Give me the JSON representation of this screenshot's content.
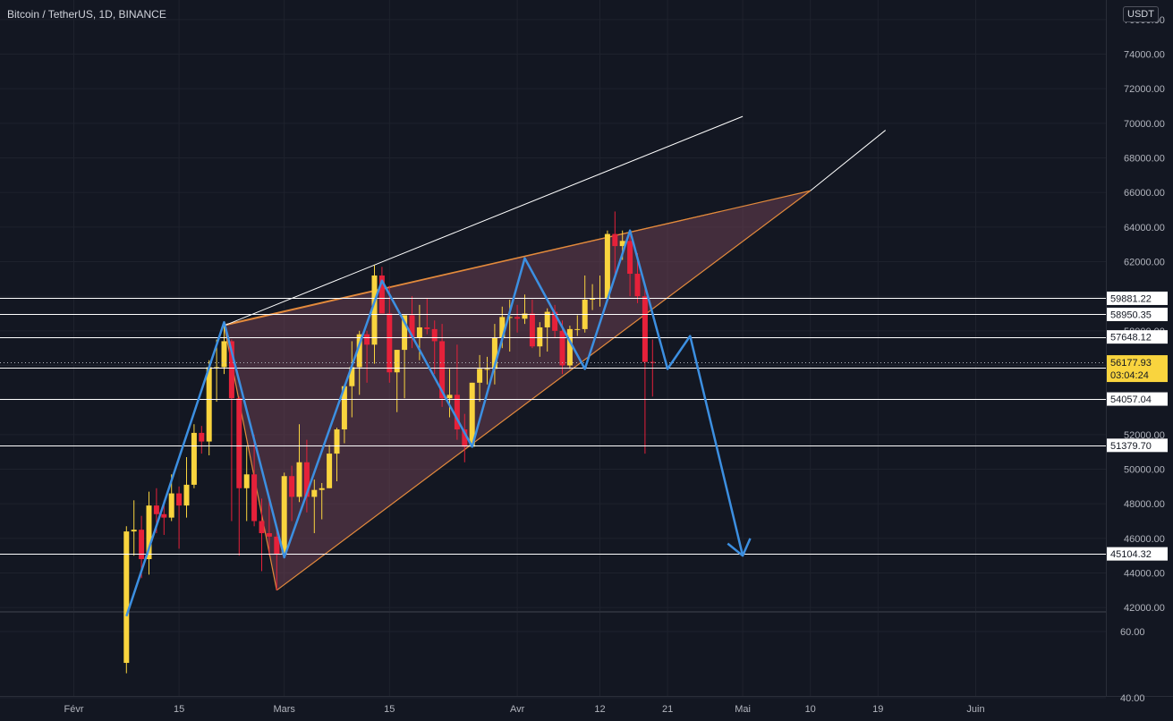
{
  "header": {
    "symbol_title": "Bitcoin / TetherUS, 1D, BINANCE",
    "unit": "USDT"
  },
  "chart_data": [
    {
      "type": "candlestick",
      "title": "Bitcoin / TetherUS, 1D, BINANCE",
      "ylabel": "USDT",
      "ylim": [
        41500,
        76000
      ],
      "grid": true,
      "colors": {
        "up": "#f9d43e",
        "down": "#e5213a",
        "up_wick": "#f9d43e",
        "down_wick": "#e5213a",
        "background": "#131722",
        "wedge_fill": "#6b3f52",
        "wedge_edge": "#e38a3c",
        "pattern": "#3c8fe1",
        "trendline": "#ffffff"
      },
      "x_ticks": [
        "Févr",
        "15",
        "Mars",
        "15",
        "Avr",
        "12",
        "21",
        "Mai",
        "10",
        "19",
        "Juin"
      ],
      "y_ticks": [
        "42000.00",
        "44000.00",
        "46000.00",
        "48000.00",
        "50000.00",
        "52000.00",
        "54000.00",
        "56000.00",
        "58000.00",
        "60000.00",
        "62000.00",
        "64000.00",
        "66000.00",
        "68000.00",
        "70000.00",
        "72000.00",
        "74000.00",
        "76000.00"
      ],
      "candles": [
        {
          "date": "2021-02-08",
          "o": 38800,
          "h": 46700,
          "l": 38200,
          "c": 46400
        },
        {
          "date": "2021-02-09",
          "o": 46400,
          "h": 48200,
          "l": 45000,
          "c": 46500
        },
        {
          "date": "2021-02-10",
          "o": 46500,
          "h": 47300,
          "l": 43700,
          "c": 44800
        },
        {
          "date": "2021-02-11",
          "o": 44800,
          "h": 48700,
          "l": 43900,
          "c": 47900
        },
        {
          "date": "2021-02-12",
          "o": 47900,
          "h": 48900,
          "l": 46300,
          "c": 47400
        },
        {
          "date": "2021-02-13",
          "o": 47400,
          "h": 48200,
          "l": 46200,
          "c": 47200
        },
        {
          "date": "2021-02-14",
          "o": 47200,
          "h": 49700,
          "l": 47000,
          "c": 48600
        },
        {
          "date": "2021-02-15",
          "o": 48600,
          "h": 49000,
          "l": 45400,
          "c": 47900
        },
        {
          "date": "2021-02-16",
          "o": 47900,
          "h": 50700,
          "l": 47200,
          "c": 49100
        },
        {
          "date": "2021-02-17",
          "o": 49100,
          "h": 52600,
          "l": 48900,
          "c": 52100
        },
        {
          "date": "2021-02-18",
          "o": 52100,
          "h": 52500,
          "l": 50900,
          "c": 51600
        },
        {
          "date": "2021-02-19",
          "o": 51600,
          "h": 56300,
          "l": 50800,
          "c": 55900
        },
        {
          "date": "2021-02-20",
          "o": 55900,
          "h": 57500,
          "l": 53900,
          "c": 55900
        },
        {
          "date": "2021-02-21",
          "o": 55900,
          "h": 58300,
          "l": 55500,
          "c": 57400
        },
        {
          "date": "2021-02-22",
          "o": 57400,
          "h": 57500,
          "l": 47000,
          "c": 54100
        },
        {
          "date": "2021-02-23",
          "o": 54100,
          "h": 54200,
          "l": 45000,
          "c": 48900
        },
        {
          "date": "2021-02-24",
          "o": 48900,
          "h": 51300,
          "l": 47000,
          "c": 49700
        },
        {
          "date": "2021-02-25",
          "o": 49700,
          "h": 52000,
          "l": 46700,
          "c": 47000
        },
        {
          "date": "2021-02-26",
          "o": 47000,
          "h": 48300,
          "l": 44100,
          "c": 46300
        },
        {
          "date": "2021-02-27",
          "o": 46300,
          "h": 48300,
          "l": 45000,
          "c": 46100
        },
        {
          "date": "2021-02-28",
          "o": 46100,
          "h": 46600,
          "l": 43000,
          "c": 45100
        },
        {
          "date": "2021-03-01",
          "o": 45100,
          "h": 49800,
          "l": 45000,
          "c": 49600
        },
        {
          "date": "2021-03-02",
          "o": 49600,
          "h": 50200,
          "l": 47000,
          "c": 48400
        },
        {
          "date": "2021-03-03",
          "o": 48400,
          "h": 52600,
          "l": 48100,
          "c": 50400
        },
        {
          "date": "2021-03-04",
          "o": 50400,
          "h": 51700,
          "l": 47500,
          "c": 48400
        },
        {
          "date": "2021-03-05",
          "o": 48400,
          "h": 49400,
          "l": 46300,
          "c": 48800
        },
        {
          "date": "2021-03-06",
          "o": 48800,
          "h": 49200,
          "l": 47100,
          "c": 48900
        },
        {
          "date": "2021-03-07",
          "o": 48900,
          "h": 51400,
          "l": 48900,
          "c": 50900
        },
        {
          "date": "2021-03-08",
          "o": 50900,
          "h": 52400,
          "l": 49300,
          "c": 52300
        },
        {
          "date": "2021-03-09",
          "o": 52300,
          "h": 54900,
          "l": 51500,
          "c": 54800
        },
        {
          "date": "2021-03-10",
          "o": 54800,
          "h": 57400,
          "l": 53000,
          "c": 55900
        },
        {
          "date": "2021-03-11",
          "o": 55900,
          "h": 58000,
          "l": 54300,
          "c": 57800
        },
        {
          "date": "2021-03-12",
          "o": 57800,
          "h": 58000,
          "l": 55000,
          "c": 57200
        },
        {
          "date": "2021-03-13",
          "o": 57200,
          "h": 61800,
          "l": 56100,
          "c": 61200
        },
        {
          "date": "2021-03-14",
          "o": 61200,
          "h": 61700,
          "l": 59000,
          "c": 59000
        },
        {
          "date": "2021-03-15",
          "o": 59000,
          "h": 60600,
          "l": 55000,
          "c": 55600
        },
        {
          "date": "2021-03-16",
          "o": 55600,
          "h": 56900,
          "l": 53300,
          "c": 56900
        },
        {
          "date": "2021-03-17",
          "o": 56900,
          "h": 58900,
          "l": 54100,
          "c": 58900
        },
        {
          "date": "2021-03-18",
          "o": 58900,
          "h": 60000,
          "l": 57000,
          "c": 57600
        },
        {
          "date": "2021-03-19",
          "o": 57600,
          "h": 59500,
          "l": 56300,
          "c": 58200
        },
        {
          "date": "2021-03-20",
          "o": 58200,
          "h": 59900,
          "l": 57800,
          "c": 58100
        },
        {
          "date": "2021-03-21",
          "o": 58100,
          "h": 58600,
          "l": 55500,
          "c": 57400
        },
        {
          "date": "2021-03-22",
          "o": 57400,
          "h": 58400,
          "l": 53600,
          "c": 54100
        },
        {
          "date": "2021-03-23",
          "o": 54100,
          "h": 55800,
          "l": 53000,
          "c": 54300
        },
        {
          "date": "2021-03-24",
          "o": 54300,
          "h": 57200,
          "l": 51700,
          "c": 52300
        },
        {
          "date": "2021-03-25",
          "o": 52300,
          "h": 53200,
          "l": 50400,
          "c": 51300
        },
        {
          "date": "2021-03-26",
          "o": 51300,
          "h": 55000,
          "l": 51300,
          "c": 55000
        },
        {
          "date": "2021-03-27",
          "o": 55000,
          "h": 56600,
          "l": 53900,
          "c": 55800
        },
        {
          "date": "2021-03-28",
          "o": 55800,
          "h": 56500,
          "l": 54900,
          "c": 55800
        },
        {
          "date": "2021-03-29",
          "o": 55800,
          "h": 58400,
          "l": 54900,
          "c": 57600
        },
        {
          "date": "2021-03-30",
          "o": 57600,
          "h": 59400,
          "l": 57000,
          "c": 58800
        },
        {
          "date": "2021-03-31",
          "o": 58800,
          "h": 59800,
          "l": 56800,
          "c": 58800
        },
        {
          "date": "2021-04-01",
          "o": 58800,
          "h": 59500,
          "l": 57900,
          "c": 58700
        },
        {
          "date": "2021-04-02",
          "o": 58700,
          "h": 60100,
          "l": 58400,
          "c": 59000
        },
        {
          "date": "2021-04-03",
          "o": 59000,
          "h": 59800,
          "l": 57000,
          "c": 57100
        },
        {
          "date": "2021-04-04",
          "o": 57100,
          "h": 58500,
          "l": 56500,
          "c": 58200
        },
        {
          "date": "2021-04-05",
          "o": 58200,
          "h": 59300,
          "l": 56800,
          "c": 59100
        },
        {
          "date": "2021-04-06",
          "o": 59100,
          "h": 59500,
          "l": 57600,
          "c": 58000
        },
        {
          "date": "2021-04-07",
          "o": 58000,
          "h": 58600,
          "l": 55500,
          "c": 56000
        },
        {
          "date": "2021-04-08",
          "o": 56000,
          "h": 58300,
          "l": 55800,
          "c": 58100
        },
        {
          "date": "2021-04-09",
          "o": 58100,
          "h": 58900,
          "l": 57700,
          "c": 58100
        },
        {
          "date": "2021-04-10",
          "o": 58100,
          "h": 61200,
          "l": 57900,
          "c": 59800
        },
        {
          "date": "2021-04-11",
          "o": 59800,
          "h": 60700,
          "l": 59200,
          "c": 59900
        },
        {
          "date": "2021-04-12",
          "o": 59900,
          "h": 61200,
          "l": 59400,
          "c": 59900
        },
        {
          "date": "2021-04-13",
          "o": 59900,
          "h": 63800,
          "l": 59900,
          "c": 63600
        },
        {
          "date": "2021-04-14",
          "o": 63600,
          "h": 64900,
          "l": 61000,
          "c": 62900
        },
        {
          "date": "2021-04-15",
          "o": 62900,
          "h": 63800,
          "l": 62100,
          "c": 63200
        },
        {
          "date": "2021-04-16",
          "o": 63200,
          "h": 63500,
          "l": 60000,
          "c": 61300
        },
        {
          "date": "2021-04-17",
          "o": 61300,
          "h": 62500,
          "l": 59600,
          "c": 60000
        },
        {
          "date": "2021-04-18",
          "o": 60000,
          "h": 60500,
          "l": 50900,
          "c": 56200
        },
        {
          "date": "2021-04-19",
          "o": 56200,
          "h": 57500,
          "l": 54200,
          "c": 56178
        }
      ],
      "wedge": {
        "upper": [
          {
            "date": "2021-02-21",
            "y": 58300
          },
          {
            "date": "2021-05-10",
            "y": 66100
          }
        ],
        "lower": [
          {
            "date": "2021-02-28",
            "y": 43000
          },
          {
            "date": "2021-05-10",
            "y": 66100
          }
        ],
        "upper_short_end": {
          "date": "2021-04-28",
          "y": 64900
        },
        "start_edge": [
          {
            "date": "2021-02-21",
            "y": 58300
          },
          {
            "date": "2021-02-28",
            "y": 43000
          }
        ]
      },
      "trendlines": [
        {
          "start": {
            "date": "2021-02-21",
            "y": 58300
          },
          "end": {
            "date": "2021-05-01",
            "y": 70400
          }
        },
        {
          "start": {
            "date": "2021-05-10",
            "y": 66100
          },
          "end": {
            "date": "2021-05-20",
            "y": 69600
          }
        }
      ],
      "pattern_path": [
        {
          "date": "2021-02-08",
          "y": 41500
        },
        {
          "date": "2021-02-21",
          "y": 58500
        },
        {
          "date": "2021-03-01",
          "y": 44900
        },
        {
          "date": "2021-03-14",
          "y": 60900
        },
        {
          "date": "2021-03-26",
          "y": 51300
        },
        {
          "date": "2021-04-02",
          "y": 62200
        },
        {
          "date": "2021-04-10",
          "y": 55800
        },
        {
          "date": "2021-04-16",
          "y": 63800
        },
        {
          "date": "2021-04-21",
          "y": 55800
        },
        {
          "date": "2021-04-24",
          "y": 57700
        },
        {
          "date": "2021-05-01",
          "y": 45000
        }
      ],
      "arrowhead": [
        {
          "date": "2021-04-29",
          "y": 45700
        },
        {
          "date": "2021-05-01",
          "y": 45000
        },
        {
          "date": "2021-05-02",
          "y": 46000
        }
      ],
      "horizontal_levels": [
        {
          "value": 59881.22,
          "label": "59881.22"
        },
        {
          "value": 58950.35,
          "label": "58950.35"
        },
        {
          "value": 57648.12,
          "label": "57648.12"
        },
        {
          "value": 55846.39,
          "label": "55846.39"
        },
        {
          "value": 54057.04,
          "label": "54057.04"
        },
        {
          "value": 51379.7,
          "label": "51379.70"
        },
        {
          "value": 45104.32,
          "label": "45104.32"
        }
      ],
      "last_price": {
        "value": 56177.93,
        "label": "56177.93",
        "countdown": "03:04:24"
      }
    },
    {
      "type": "line",
      "title": "",
      "ylabel": "",
      "ylim": [
        30,
        75
      ],
      "grid": true,
      "y_ticks": [
        "40.00",
        "60.00"
      ],
      "series": []
    }
  ]
}
